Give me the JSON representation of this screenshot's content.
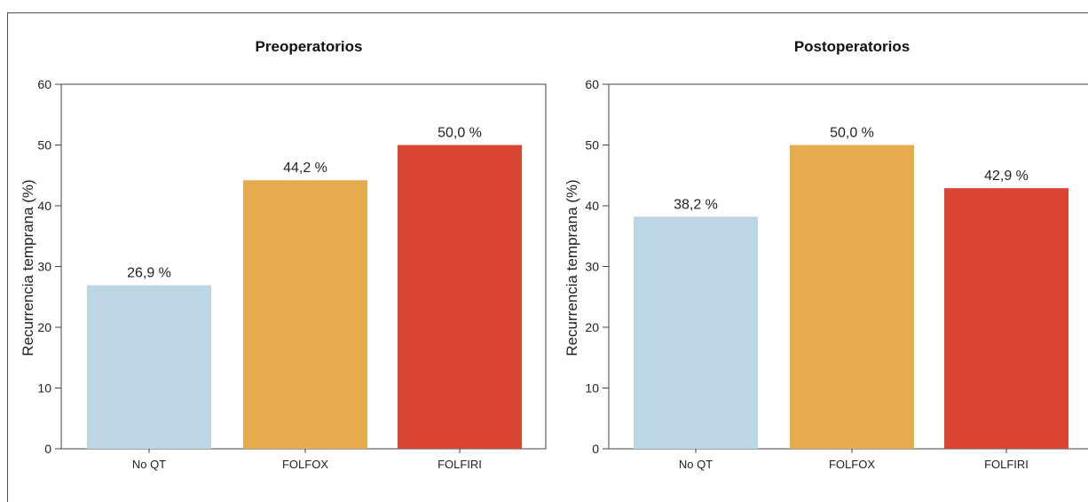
{
  "chart_data": [
    {
      "type": "bar",
      "title": "Preoperatorios",
      "ylabel": "Recurrencia temprana (%)",
      "xlabel": "",
      "ylim": [
        0,
        60
      ],
      "yticks": [
        0,
        10,
        20,
        30,
        40,
        50,
        60
      ],
      "categories": [
        "No QT",
        "FOLFOX",
        "FOLFIRI"
      ],
      "values": [
        26.9,
        44.2,
        50.0
      ],
      "value_labels": [
        "26,9 %",
        "44,2 %",
        "50,0 %"
      ],
      "colors": [
        "#BCD6E3",
        "#E6AA4F",
        "#D84532"
      ],
      "grid": false
    },
    {
      "type": "bar",
      "title": "Postoperatorios",
      "ylabel": "Recurrencia temprana (%)",
      "xlabel": "",
      "ylim": [
        0,
        60
      ],
      "yticks": [
        0,
        10,
        20,
        30,
        40,
        50,
        60
      ],
      "categories": [
        "No QT",
        "FOLFOX",
        "FOLFIRI"
      ],
      "values": [
        38.2,
        50.0,
        42.9
      ],
      "value_labels": [
        "38,2 %",
        "50,0 %",
        "42,9 %"
      ],
      "colors": [
        "#BCD6E3",
        "#E6AA4F",
        "#D84532"
      ],
      "grid": false
    }
  ]
}
